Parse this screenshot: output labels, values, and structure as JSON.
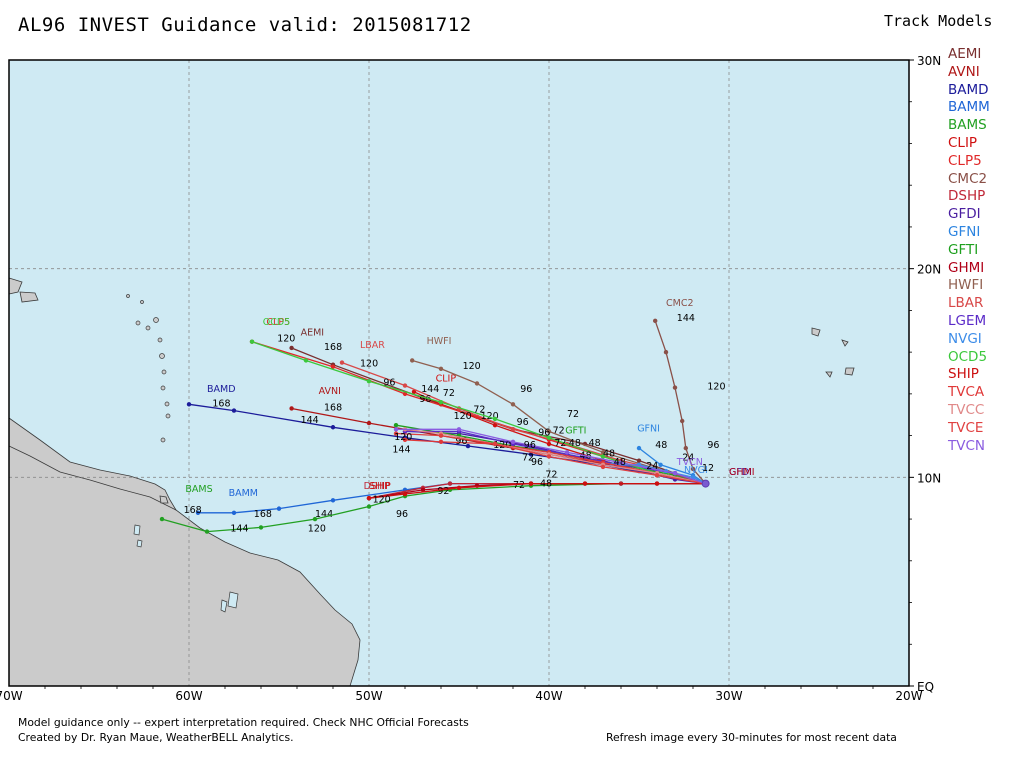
{
  "header": {
    "title": "AL96 INVEST Guidance valid: 2015081712",
    "legend_title": "Track Models"
  },
  "legend": [
    {
      "label": "AEMI",
      "color": "#7a2f2f"
    },
    {
      "label": "AVNI",
      "color": "#b01818"
    },
    {
      "label": "BAMD",
      "color": "#1c1c9a"
    },
    {
      "label": "BAMM",
      "color": "#1f66d6"
    },
    {
      "label": "BAMS",
      "color": "#22a022"
    },
    {
      "label": "CLIP",
      "color": "#d01010"
    },
    {
      "label": "CLP5",
      "color": "#e02828"
    },
    {
      "label": "CMC2",
      "color": "#8a5048"
    },
    {
      "label": "DSHP",
      "color": "#c02838"
    },
    {
      "label": "GFDI",
      "color": "#4a1ea0"
    },
    {
      "label": "GFNI",
      "color": "#2c84e0"
    },
    {
      "label": "GFTI",
      "color": "#1ea01e"
    },
    {
      "label": "GHMI",
      "color": "#b00018"
    },
    {
      "label": "HWFI",
      "color": "#906050"
    },
    {
      "label": "LBAR",
      "color": "#d84848"
    },
    {
      "label": "LGEM",
      "color": "#5a2ac8"
    },
    {
      "label": "NVGI",
      "color": "#3c8ce8"
    },
    {
      "label": "OCD5",
      "color": "#3cc83c"
    },
    {
      "label": "SHIP",
      "color": "#cc1010"
    },
    {
      "label": "TVCA",
      "color": "#e03838"
    },
    {
      "label": "TVCC",
      "color": "#e08888"
    },
    {
      "label": "TVCE",
      "color": "#e04040"
    },
    {
      "label": "TVCN",
      "color": "#8a5ce0"
    }
  ],
  "axes": {
    "lon_labels": [
      "70W",
      "60W",
      "50W",
      "40W",
      "30W",
      "20W"
    ],
    "lat_labels": [
      "30N",
      "20N",
      "10N",
      "EQ"
    ],
    "lon_range": [
      -70,
      -20
    ],
    "lat_range": [
      0,
      30
    ],
    "grid": "dashed"
  },
  "tracks": [
    {
      "model": "AEMI",
      "color": "#7a2f2f",
      "points": [
        [
          -31.3,
          9.7
        ],
        [
          -33,
          10.2
        ],
        [
          -35,
          10.8
        ],
        [
          -38,
          11.6
        ],
        [
          -42,
          12.3
        ],
        [
          -47,
          13.8
        ],
        [
          -52,
          15.4
        ],
        [
          -54.3,
          16.2
        ]
      ],
      "label": {
        "lon": -53.8,
        "lat": 16.8,
        "text": "AEMI"
      },
      "nums": [
        {
          "lon": -52.5,
          "lat": 16.1,
          "text": "168"
        }
      ]
    },
    {
      "model": "AVNI",
      "color": "#b01818",
      "points": [
        [
          -31.3,
          9.7
        ],
        [
          -34,
          10.2
        ],
        [
          -38,
          10.8
        ],
        [
          -42,
          11.4
        ],
        [
          -46,
          12
        ],
        [
          -50,
          12.6
        ],
        [
          -54.3,
          13.3
        ]
      ],
      "label": {
        "lon": -52.8,
        "lat": 14.0,
        "text": "AVNI"
      },
      "nums": [
        {
          "lon": -52.5,
          "lat": 13.2,
          "text": "168"
        }
      ]
    },
    {
      "model": "BAMD",
      "color": "#1c1c9a",
      "points": [
        [
          -31.3,
          9.7
        ],
        [
          -34,
          10.1
        ],
        [
          -37,
          10.6
        ],
        [
          -41,
          11.1
        ],
        [
          -44.5,
          11.5
        ],
        [
          -48,
          11.9
        ],
        [
          -52,
          12.4
        ],
        [
          -57.5,
          13.2
        ],
        [
          -60,
          13.5
        ]
      ],
      "label": {
        "lon": -59,
        "lat": 14.1,
        "text": "BAMD"
      },
      "nums": [
        {
          "lon": -58.7,
          "lat": 13.4,
          "text": "168"
        },
        {
          "lon": -53.8,
          "lat": 12.6,
          "text": "144"
        }
      ]
    },
    {
      "model": "BAMM",
      "color": "#1f66d6",
      "points": [
        [
          -31.3,
          9.7
        ],
        [
          -36,
          9.7
        ],
        [
          -41,
          9.7
        ],
        [
          -45.5,
          9.7
        ],
        [
          -48,
          9.4
        ],
        [
          -52,
          8.9
        ],
        [
          -55,
          8.5
        ],
        [
          -57.5,
          8.3
        ],
        [
          -59.5,
          8.3
        ]
      ],
      "label": {
        "lon": -57.8,
        "lat": 9.1,
        "text": "BAMM"
      },
      "nums": [
        {
          "lon": -56.4,
          "lat": 8.1,
          "text": "168"
        },
        {
          "lon": -53.0,
          "lat": 8.1,
          "text": "144"
        }
      ]
    },
    {
      "model": "BAMS",
      "color": "#22a022",
      "points": [
        [
          -31.3,
          9.7
        ],
        [
          -36,
          9.7
        ],
        [
          -41,
          9.6
        ],
        [
          -45.5,
          9.4
        ],
        [
          -48,
          9.1
        ],
        [
          -50,
          8.6
        ],
        [
          -53,
          8.0
        ],
        [
          -56,
          7.6
        ],
        [
          -59,
          7.4
        ],
        [
          -61.5,
          8.0
        ]
      ],
      "label": {
        "lon": -60.2,
        "lat": 9.3,
        "text": "BAMS"
      },
      "nums": [
        {
          "lon": -53.4,
          "lat": 7.4,
          "text": "120"
        },
        {
          "lon": -57.7,
          "lat": 7.4,
          "text": "144"
        },
        {
          "lon": -60.3,
          "lat": 8.3,
          "text": "168"
        },
        {
          "lon": -48.5,
          "lat": 8.1,
          "text": "96"
        }
      ]
    },
    {
      "model": "CLIP",
      "color": "#d01010",
      "points": [
        [
          -31.3,
          9.7
        ],
        [
          -34,
          10.1
        ],
        [
          -37,
          10.8
        ],
        [
          -40,
          11.6
        ],
        [
          -43,
          12.5
        ],
        [
          -46,
          13.5
        ],
        [
          -47.5,
          14.1
        ]
      ],
      "label": {
        "lon": -46.3,
        "lat": 14.6,
        "text": "CLIP"
      },
      "nums": [
        {
          "lon": -45.9,
          "lat": 13.9,
          "text": "72"
        }
      ]
    },
    {
      "model": "CLP5",
      "color": "#e02828",
      "points": [
        [
          -31.3,
          9.7
        ],
        [
          -34,
          10.2
        ],
        [
          -37,
          11
        ],
        [
          -40,
          11.8
        ],
        [
          -44,
          12.9
        ],
        [
          -48,
          14
        ],
        [
          -52,
          15.3
        ],
        [
          -56.5,
          16.5
        ]
      ],
      "label": {
        "lon": -55.7,
        "lat": 17.3,
        "text": "CLP5"
      },
      "nums": []
    },
    {
      "model": "CMC2",
      "color": "#8a5048",
      "points": [
        [
          -31.3,
          9.7
        ],
        [
          -32,
          10.4
        ],
        [
          -32.4,
          11.4
        ],
        [
          -32.6,
          12.7
        ],
        [
          -33,
          14.3
        ],
        [
          -33.5,
          16
        ],
        [
          -34.1,
          17.5
        ]
      ],
      "label": {
        "lon": -33.5,
        "lat": 18.2,
        "text": "CMC2"
      },
      "nums": [
        {
          "lon": -32.9,
          "lat": 17.5,
          "text": "144"
        },
        {
          "lon": -31.2,
          "lat": 14.2,
          "text": "120"
        },
        {
          "lon": -31.2,
          "lat": 11.4,
          "text": "96"
        }
      ]
    },
    {
      "model": "DSHP",
      "color": "#c02838",
      "points": [
        [
          -31.3,
          9.7
        ],
        [
          -36,
          9.7
        ],
        [
          -41,
          9.7
        ],
        [
          -45.5,
          9.7
        ],
        [
          -47,
          9.5
        ],
        [
          -50,
          9.0
        ]
      ],
      "label": {
        "lon": -50.3,
        "lat": 9.45,
        "text": "DSHP"
      },
      "nums": []
    },
    {
      "model": "GFDI",
      "color": "#4a1ea0",
      "points": [
        [
          -31.3,
          9.7
        ],
        [
          -33,
          9.9
        ],
        [
          -35,
          10.3
        ],
        [
          -38,
          10.9
        ],
        [
          -41,
          11.5
        ],
        [
          -45,
          12.1
        ],
        [
          -48,
          12.2
        ]
      ],
      "label": {
        "lon": -30.0,
        "lat": 10.1,
        "text": "GFDI"
      },
      "nums": []
    },
    {
      "model": "GFNI",
      "color": "#2c84e0",
      "points": [
        [
          -31.3,
          9.7
        ],
        [
          -32,
          10.1
        ],
        [
          -33.8,
          10.6
        ],
        [
          -35,
          11.4
        ]
      ],
      "label": {
        "lon": -35.1,
        "lat": 12.2,
        "text": "GFNI"
      },
      "nums": [
        {
          "lon": -34.1,
          "lat": 11.4,
          "text": "48"
        },
        {
          "lon": -32.6,
          "lat": 10.8,
          "text": "24"
        }
      ]
    },
    {
      "model": "GFTI",
      "color": "#1ea01e",
      "points": [
        [
          -31.3,
          9.7
        ],
        [
          -33,
          10.1
        ],
        [
          -36,
          10.6
        ],
        [
          -39,
          11.1
        ],
        [
          -42,
          11.5
        ],
        [
          -45,
          12
        ],
        [
          -48.5,
          12.5
        ]
      ],
      "label": {
        "lon": -39.1,
        "lat": 12.1,
        "text": "GFTI"
      },
      "nums": [
        {
          "lon": -39.8,
          "lat": 12.1,
          "text": "72"
        }
      ]
    },
    {
      "model": "GHMI",
      "color": "#b00018",
      "points": [
        [
          -31.3,
          9.7
        ],
        [
          -34,
          9.7
        ],
        [
          -38,
          9.7
        ],
        [
          -41,
          9.7
        ],
        [
          -44,
          9.6
        ],
        [
          -47,
          9.4
        ],
        [
          -50,
          9.0
        ]
      ],
      "label": {
        "lon": -30.0,
        "lat": 10.1,
        "text": "GHMI"
      },
      "nums": [
        {
          "lon": -42.0,
          "lat": 9.5,
          "text": "72"
        },
        {
          "lon": -46.2,
          "lat": 9.2,
          "text": "92"
        }
      ]
    },
    {
      "model": "HWFI",
      "color": "#906050",
      "points": [
        [
          -31.3,
          9.7
        ],
        [
          -34,
          10.4
        ],
        [
          -37,
          11.2
        ],
        [
          -40,
          12.2
        ],
        [
          -42,
          13.5
        ],
        [
          -44,
          14.5
        ],
        [
          -46,
          15.2
        ],
        [
          -47.6,
          15.6
        ]
      ],
      "label": {
        "lon": -46.8,
        "lat": 16.4,
        "text": "HWFI"
      },
      "nums": [
        {
          "lon": -44.8,
          "lat": 15.2,
          "text": "120"
        },
        {
          "lon": -41.6,
          "lat": 14.1,
          "text": "96"
        },
        {
          "lon": -39.0,
          "lat": 12.9,
          "text": "72"
        }
      ]
    },
    {
      "model": "LBAR",
      "color": "#d84848",
      "points": [
        [
          -31.3,
          9.7
        ],
        [
          -33,
          10.2
        ],
        [
          -36,
          10.8
        ],
        [
          -39,
          11.6
        ],
        [
          -42,
          12.3
        ],
        [
          -45,
          13.3
        ],
        [
          -48,
          14.4
        ],
        [
          -51.5,
          15.5
        ]
      ],
      "label": {
        "lon": -50.5,
        "lat": 16.2,
        "text": "LBAR"
      },
      "nums": [
        {
          "lon": -50.5,
          "lat": 15.3,
          "text": "120"
        },
        {
          "lon": -47.1,
          "lat": 14.1,
          "text": "144"
        },
        {
          "lon": -47.2,
          "lat": 13.6,
          "text": "96"
        }
      ]
    },
    {
      "model": "LGEM",
      "color": "#5a2ac8",
      "points": [
        [
          -31.3,
          9.7
        ],
        [
          -33,
          10.2
        ],
        [
          -36,
          10.6
        ],
        [
          -39,
          11.1
        ],
        [
          -42,
          11.6
        ],
        [
          -45,
          12.2
        ],
        [
          -48,
          12.2
        ]
      ],
      "label": null,
      "nums": [
        {
          "lon": -43.8,
          "lat": 12.8,
          "text": "120"
        }
      ]
    },
    {
      "model": "NVGI",
      "color": "#3c8ce8",
      "points": [
        [
          -31.3,
          9.7
        ],
        [
          -32,
          10.0
        ],
        [
          -33.5,
          10.3
        ],
        [
          -35,
          10.6
        ],
        [
          -36.5,
          10.6
        ]
      ],
      "label": {
        "lon": -32.5,
        "lat": 10.2,
        "text": "NVGI"
      },
      "nums": []
    },
    {
      "model": "OCD5",
      "color": "#3cc83c",
      "points": [
        [
          -31.3,
          9.7
        ],
        [
          -34,
          10.2
        ],
        [
          -37,
          11
        ],
        [
          -40,
          11.9
        ],
        [
          -43,
          12.8
        ],
        [
          -46,
          13.6
        ],
        [
          -50,
          14.6
        ],
        [
          -53.5,
          15.6
        ],
        [
          -56.5,
          16.5
        ]
      ],
      "label": {
        "lon": -55.9,
        "lat": 17.3,
        "text": "OCD5"
      },
      "nums": [
        {
          "lon": -55.1,
          "lat": 16.5,
          "text": "120"
        },
        {
          "lon": -49.2,
          "lat": 14.4,
          "text": "96"
        },
        {
          "lon": -45.3,
          "lat": 12.8,
          "text": "120"
        }
      ]
    },
    {
      "model": "SHIP",
      "color": "#cc1010",
      "points": [
        [
          -31.3,
          9.7
        ],
        [
          -34,
          9.7
        ],
        [
          -38,
          9.7
        ],
        [
          -41,
          9.7
        ],
        [
          -45,
          9.5
        ],
        [
          -48,
          9.2
        ],
        [
          -50,
          9.0
        ]
      ],
      "label": {
        "lon": -50.0,
        "lat": 9.45,
        "text": "SHIP"
      },
      "nums": [
        {
          "lon": -49.8,
          "lat": 8.8,
          "text": "120"
        },
        {
          "lon": -40.5,
          "lat": 9.55,
          "text": "48"
        }
      ]
    },
    {
      "model": "TVCA",
      "color": "#e03838",
      "points": [
        [
          -31.3,
          9.7
        ],
        [
          -34,
          10.2
        ],
        [
          -37,
          10.7
        ],
        [
          -40,
          11.2
        ],
        [
          -43,
          11.6
        ],
        [
          -46,
          11.7
        ],
        [
          -48,
          11.8
        ]
      ],
      "label": null,
      "nums": [
        {
          "lon": -45.2,
          "lat": 11.6,
          "text": "96"
        },
        {
          "lon": -43.1,
          "lat": 11.4,
          "text": "120"
        },
        {
          "lon": -41.0,
          "lat": 10.6,
          "text": "96"
        },
        {
          "lon": -40.2,
          "lat": 10.0,
          "text": "72"
        }
      ]
    },
    {
      "model": "TVCC",
      "color": "#e08888",
      "points": [
        [
          -31.3,
          9.7
        ],
        [
          -34,
          10.2
        ],
        [
          -37,
          10.6
        ],
        [
          -40,
          11.1
        ],
        [
          -43,
          11.6
        ],
        [
          -46,
          12.1
        ],
        [
          -48,
          12.3
        ]
      ],
      "label": null,
      "nums": [
        {
          "lon": -40.6,
          "lat": 12.0,
          "text": "96"
        },
        {
          "lon": -39.7,
          "lat": 11.5,
          "text": "72"
        },
        {
          "lon": -38.9,
          "lat": 11.5,
          "text": "48"
        },
        {
          "lon": -41.8,
          "lat": 12.5,
          "text": "96"
        }
      ]
    },
    {
      "model": "TVCE",
      "color": "#e04040",
      "points": [
        [
          -31.3,
          9.7
        ],
        [
          -34,
          10.1
        ],
        [
          -37,
          10.5
        ],
        [
          -40,
          11.0
        ],
        [
          -43,
          11.6
        ],
        [
          -46,
          12.0
        ],
        [
          -48.5,
          12.1
        ]
      ],
      "label": null,
      "nums": [
        {
          "lon": -37.8,
          "lat": 11.5,
          "text": "48"
        },
        {
          "lon": -37.0,
          "lat": 11.0,
          "text": "48"
        },
        {
          "lon": -38.3,
          "lat": 10.9,
          "text": "48"
        },
        {
          "lon": -48.7,
          "lat": 11.2,
          "text": "144"
        },
        {
          "lon": -44.2,
          "lat": 13.1,
          "text": "72"
        }
      ]
    },
    {
      "model": "TVCN",
      "color": "#8a5ce0",
      "points": [
        [
          -31.3,
          9.7
        ],
        [
          -33,
          10.2
        ],
        [
          -36,
          10.7
        ],
        [
          -39,
          11.2
        ],
        [
          -42,
          11.7
        ],
        [
          -45,
          12.3
        ],
        [
          -48.5,
          12.3
        ]
      ],
      "label": {
        "lon": -32.9,
        "lat": 10.6,
        "text": "TVCN"
      },
      "nums": [
        {
          "lon": -41.4,
          "lat": 11.4,
          "text": "96"
        },
        {
          "lon": -41.5,
          "lat": 10.8,
          "text": "72"
        },
        {
          "lon": -48.6,
          "lat": 11.8,
          "text": "120"
        },
        {
          "lon": -36.4,
          "lat": 10.6,
          "text": "48"
        },
        {
          "lon": -34.6,
          "lat": 10.4,
          "text": "24"
        },
        {
          "lon": -31.5,
          "lat": 10.3,
          "text": "12"
        }
      ]
    }
  ],
  "footer": {
    "line1": "Model guidance only -- expert interpretation required.  Check NHC Official Forecasts",
    "line2": "Created by Dr. Ryan Maue, WeatherBELL Analytics.",
    "refresh": "Refresh image every 30-minutes for most recent data"
  }
}
